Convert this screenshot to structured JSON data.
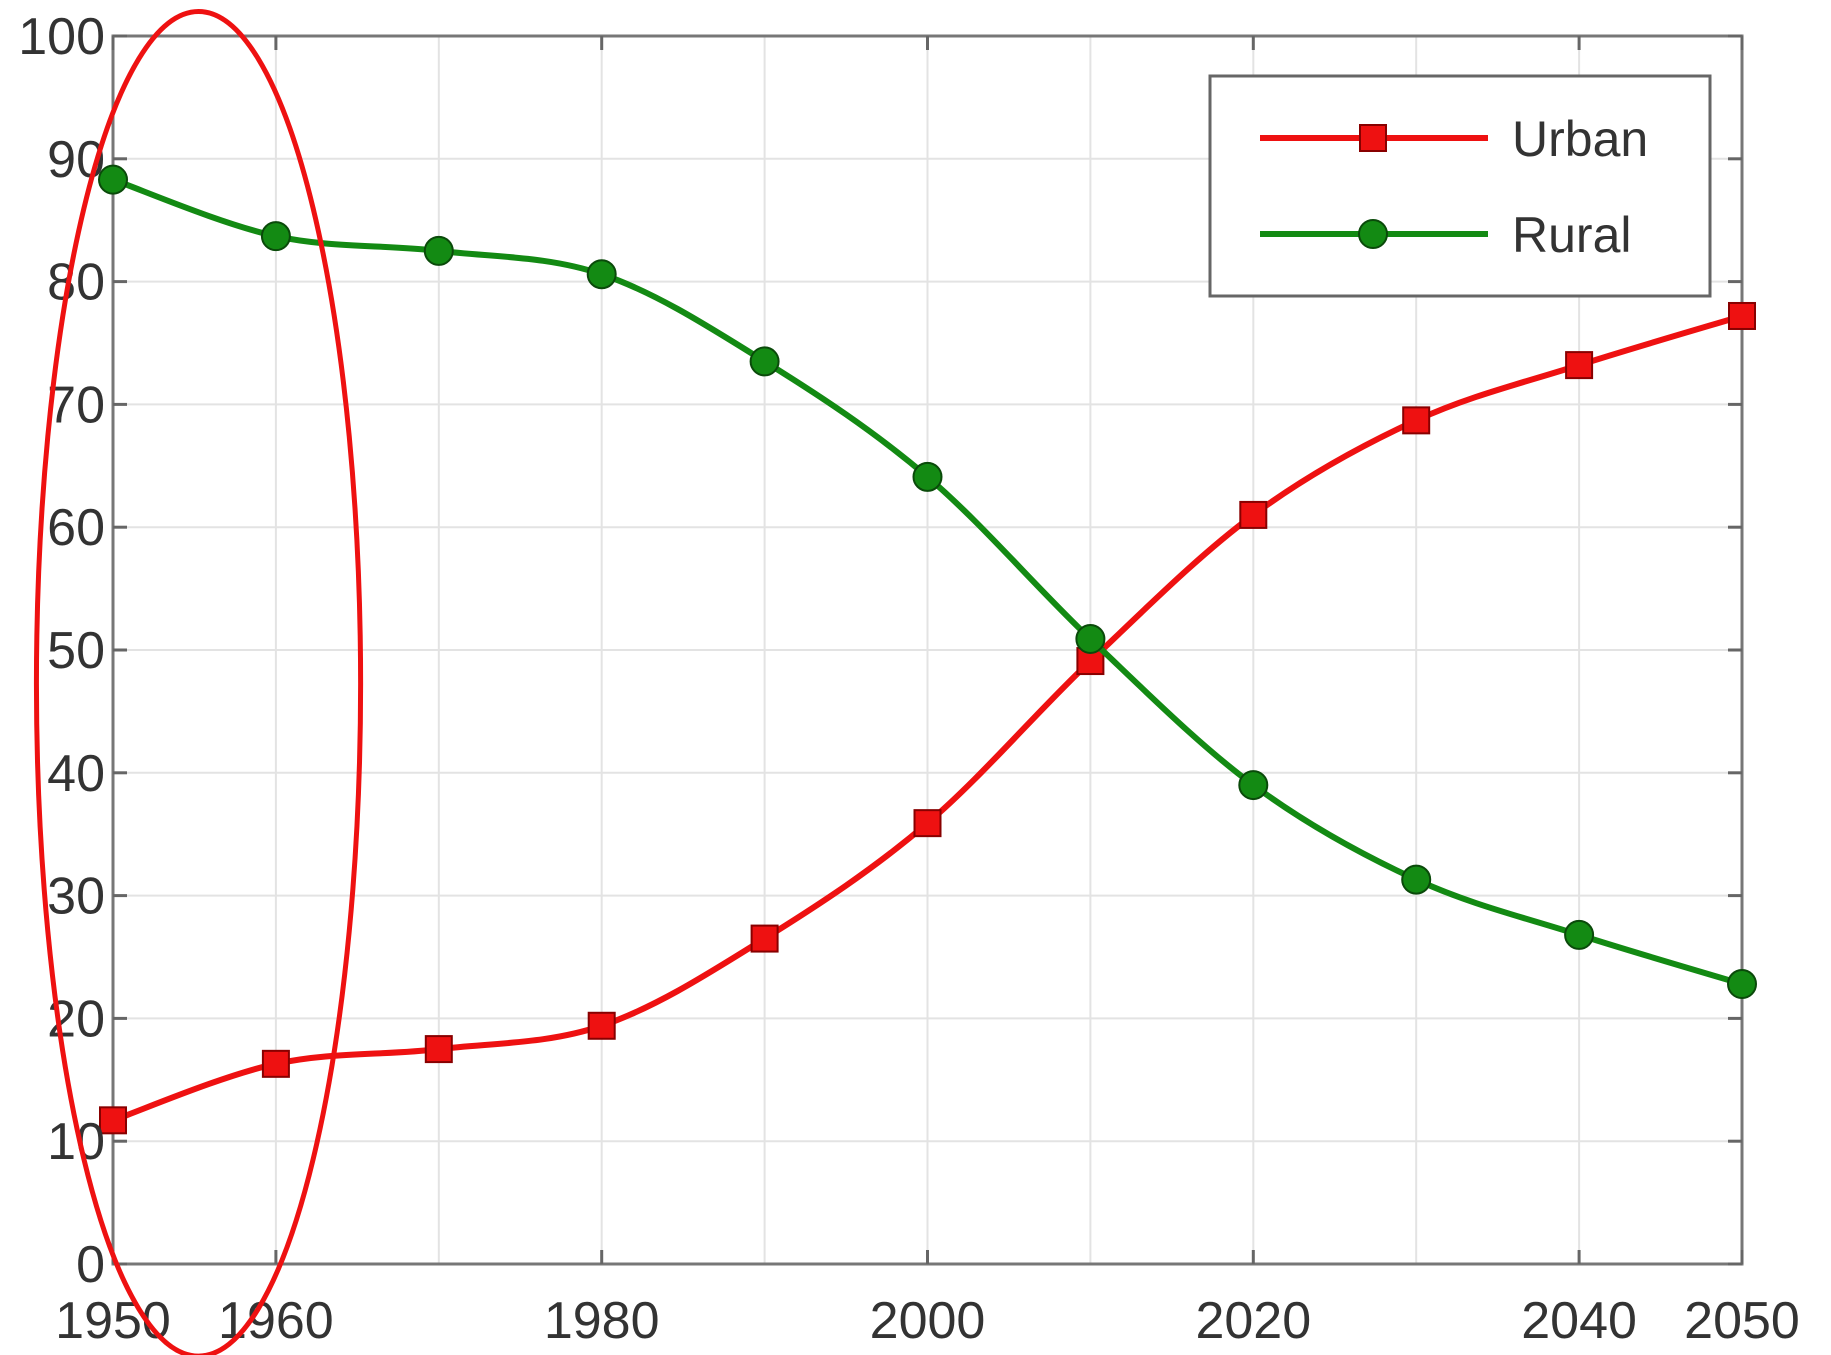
{
  "chart_data": {
    "type": "line",
    "title": "",
    "xlabel": "",
    "ylabel": "",
    "xlim": [
      1950,
      2050
    ],
    "ylim": [
      0,
      100
    ],
    "x_ticks": [
      1950,
      1960,
      1980,
      2000,
      2020,
      2040,
      2050
    ],
    "x_tick_labels": [
      "1950",
      "1960",
      "1980",
      "2000",
      "2020",
      "2040",
      "2050"
    ],
    "y_ticks": [
      0,
      10,
      20,
      30,
      40,
      50,
      60,
      70,
      80,
      90,
      100
    ],
    "y_tick_labels": [
      "0",
      "10",
      "20",
      "30",
      "40",
      "50",
      "60",
      "70",
      "80",
      "90",
      "100"
    ],
    "x_gridlines": [
      1950,
      1960,
      1970,
      1980,
      1990,
      2000,
      2010,
      2020,
      2030,
      2040,
      2050
    ],
    "grid": true,
    "legend_position": "top-right",
    "x": [
      1950,
      1960,
      1970,
      1980,
      1990,
      2000,
      2010,
      2020,
      2030,
      2040,
      2050
    ],
    "series": [
      {
        "name": "Urban",
        "color": "#ee1111",
        "marker": "square",
        "values": [
          11.7,
          16.3,
          17.5,
          19.4,
          26.5,
          35.9,
          49.1,
          61.0,
          68.7,
          73.2,
          77.2
        ]
      },
      {
        "name": "Rural",
        "color": "#138a13",
        "marker": "circle",
        "values": [
          88.3,
          83.7,
          82.5,
          80.6,
          73.5,
          64.1,
          50.9,
          39.0,
          31.3,
          26.8,
          22.8
        ]
      }
    ],
    "annotation": {
      "shape": "ellipse",
      "color": "#ee1111",
      "x_range": [
        1945.3,
        1965.2
      ],
      "y_range": [
        -7.5,
        102
      ]
    }
  }
}
